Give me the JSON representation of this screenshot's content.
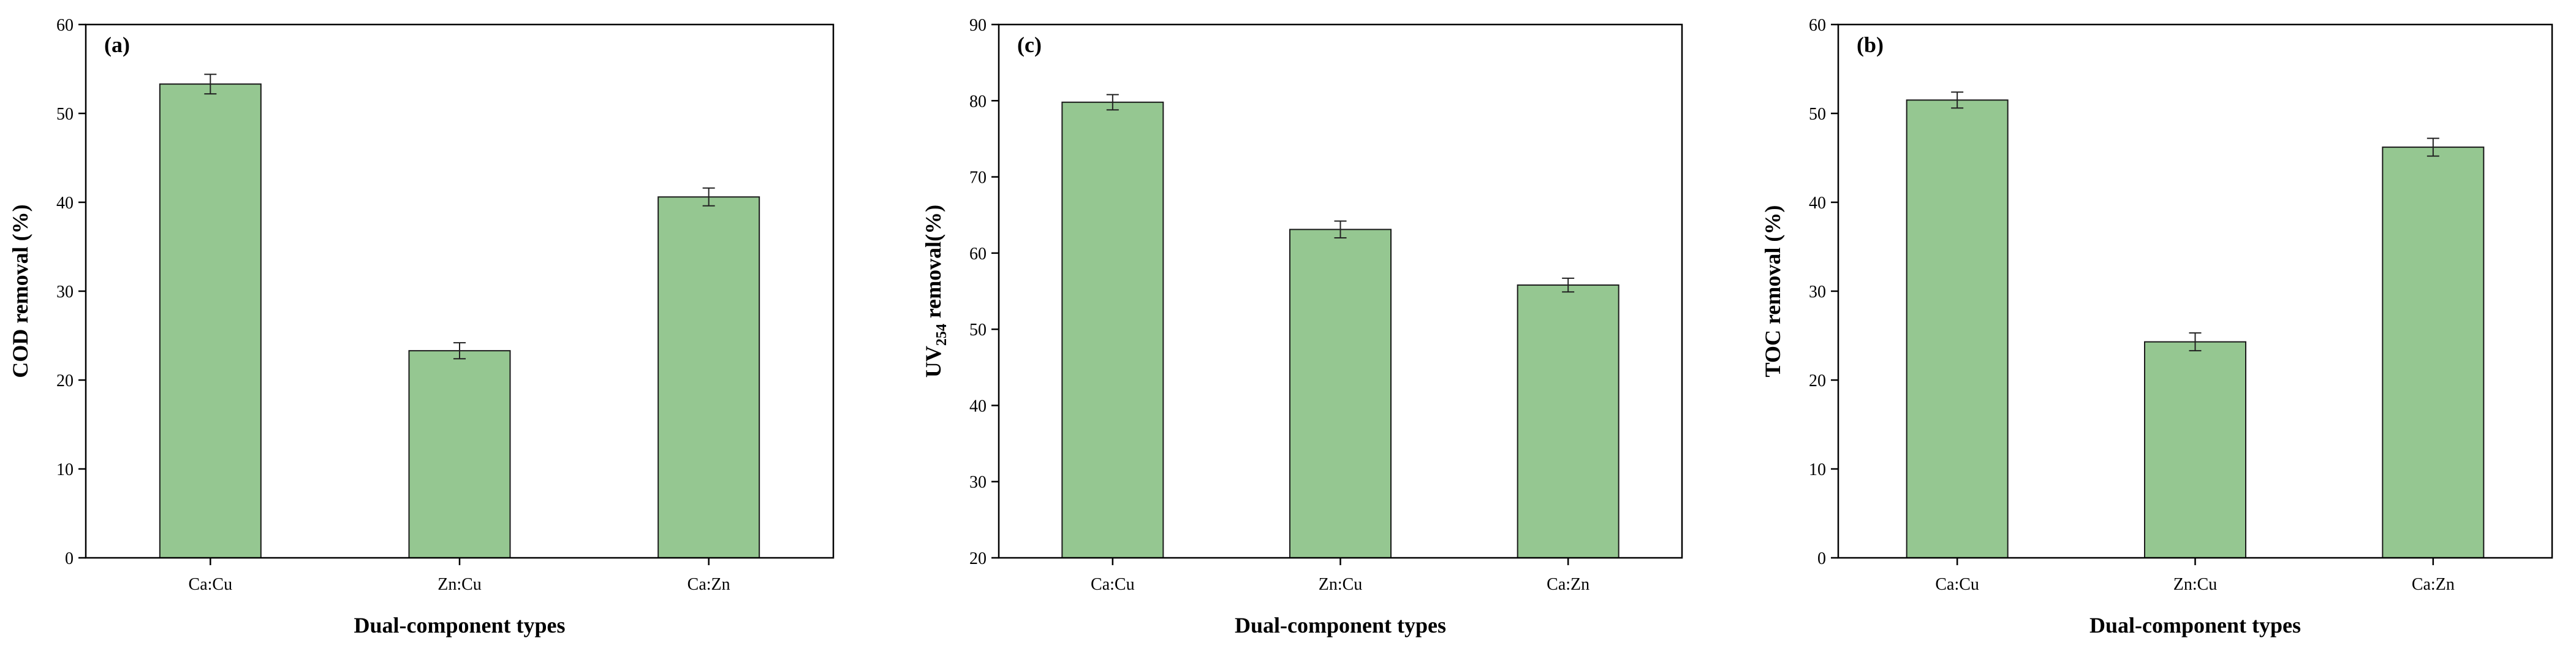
{
  "chart_data": [
    {
      "type": "bar",
      "panel_label": "(a)",
      "categories": [
        "Ca:Cu",
        "Zn:Cu",
        "Ca:Zn"
      ],
      "values": [
        53.3,
        23.3,
        40.6
      ],
      "errors": [
        1.1,
        0.9,
        1.0
      ],
      "xlabel": "Dual-component types",
      "ylabel": "COD removal (%)",
      "ylabel_sub": "",
      "ylabel_suffix": "",
      "ylim": [
        0,
        60
      ],
      "yticks": [
        0,
        10,
        20,
        30,
        40,
        50,
        60
      ],
      "bar_color": "#95c791",
      "grid": false
    },
    {
      "type": "bar",
      "panel_label": "(c)",
      "categories": [
        "Ca:Cu",
        "Zn:Cu",
        "Ca:Zn"
      ],
      "values": [
        79.8,
        63.1,
        55.8
      ],
      "errors": [
        1.0,
        1.1,
        0.9
      ],
      "xlabel": "Dual-component types",
      "ylabel": "UV",
      "ylabel_sub": "254",
      "ylabel_suffix": " removal(%)",
      "ylim": [
        20,
        90
      ],
      "yticks": [
        20,
        30,
        40,
        50,
        60,
        70,
        80,
        90
      ],
      "bar_color": "#95c791",
      "grid": false
    },
    {
      "type": "bar",
      "panel_label": "(b)",
      "categories": [
        "Ca:Cu",
        "Zn:Cu",
        "Ca:Zn"
      ],
      "values": [
        51.5,
        24.3,
        46.2
      ],
      "errors": [
        0.9,
        1.0,
        1.0
      ],
      "xlabel": "Dual-component types",
      "ylabel": "TOC removal (%)",
      "ylabel_sub": "",
      "ylabel_suffix": "",
      "ylim": [
        0,
        60
      ],
      "yticks": [
        0,
        10,
        20,
        30,
        40,
        50,
        60
      ],
      "bar_color": "#95c791",
      "grid": false
    }
  ]
}
